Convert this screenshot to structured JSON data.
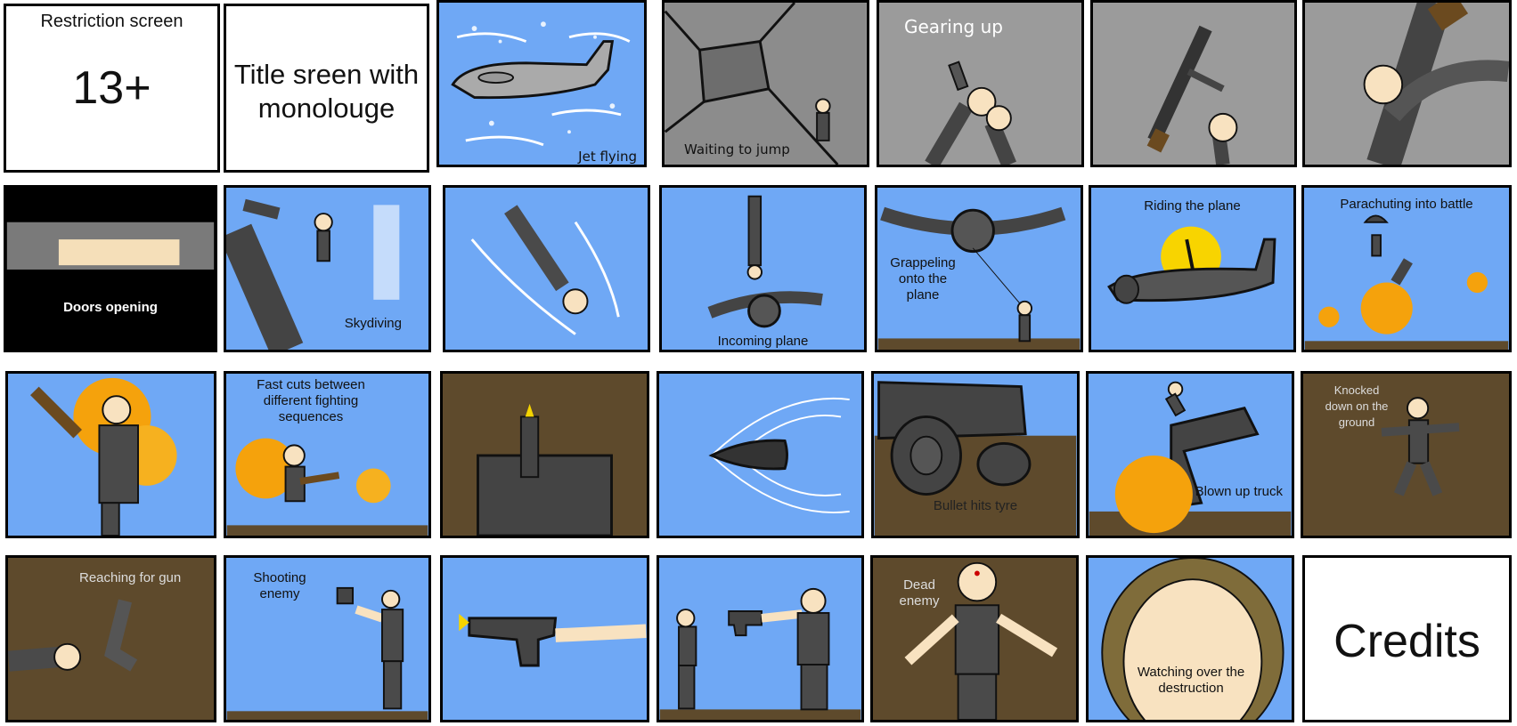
{
  "storyboard": {
    "row1": {
      "restriction_title": "Restriction screen",
      "restriction_rating": "13+",
      "title_screen_text": "Title sreen with monolouge",
      "jet_flying": "Jet flying",
      "waiting_to_jump": "Waiting to jump",
      "gearing_up": "Gearing up"
    },
    "row2": {
      "doors_opening": "Doors opening",
      "skydiving": "Skydiving",
      "incoming_plane": "Incoming plane",
      "grappeling": "Grappeling onto the plane",
      "riding_the_plane": "Riding the plane",
      "parachuting": "Parachuting into battle"
    },
    "row3": {
      "fast_cuts": "Fast cuts between different fighting sequences",
      "bullet_hits_tyre": "Bullet hits tyre",
      "blown_up_truck": "Blown up truck",
      "knocked_down": "Knocked down on the ground"
    },
    "row4": {
      "reaching_for_gun": "Reaching for gun",
      "shooting_enemy": "Shooting enemy",
      "dead_enemy": "Dead enemy",
      "watching_over": "Watching over the destruction",
      "credits": "Credits"
    }
  },
  "colors": {
    "sky": "#6fa8f5",
    "dirt": "#5e4a2c",
    "character_gray": "#4a4a4a",
    "skin": "#f8e2c0",
    "explosion": "#f5a20c"
  }
}
